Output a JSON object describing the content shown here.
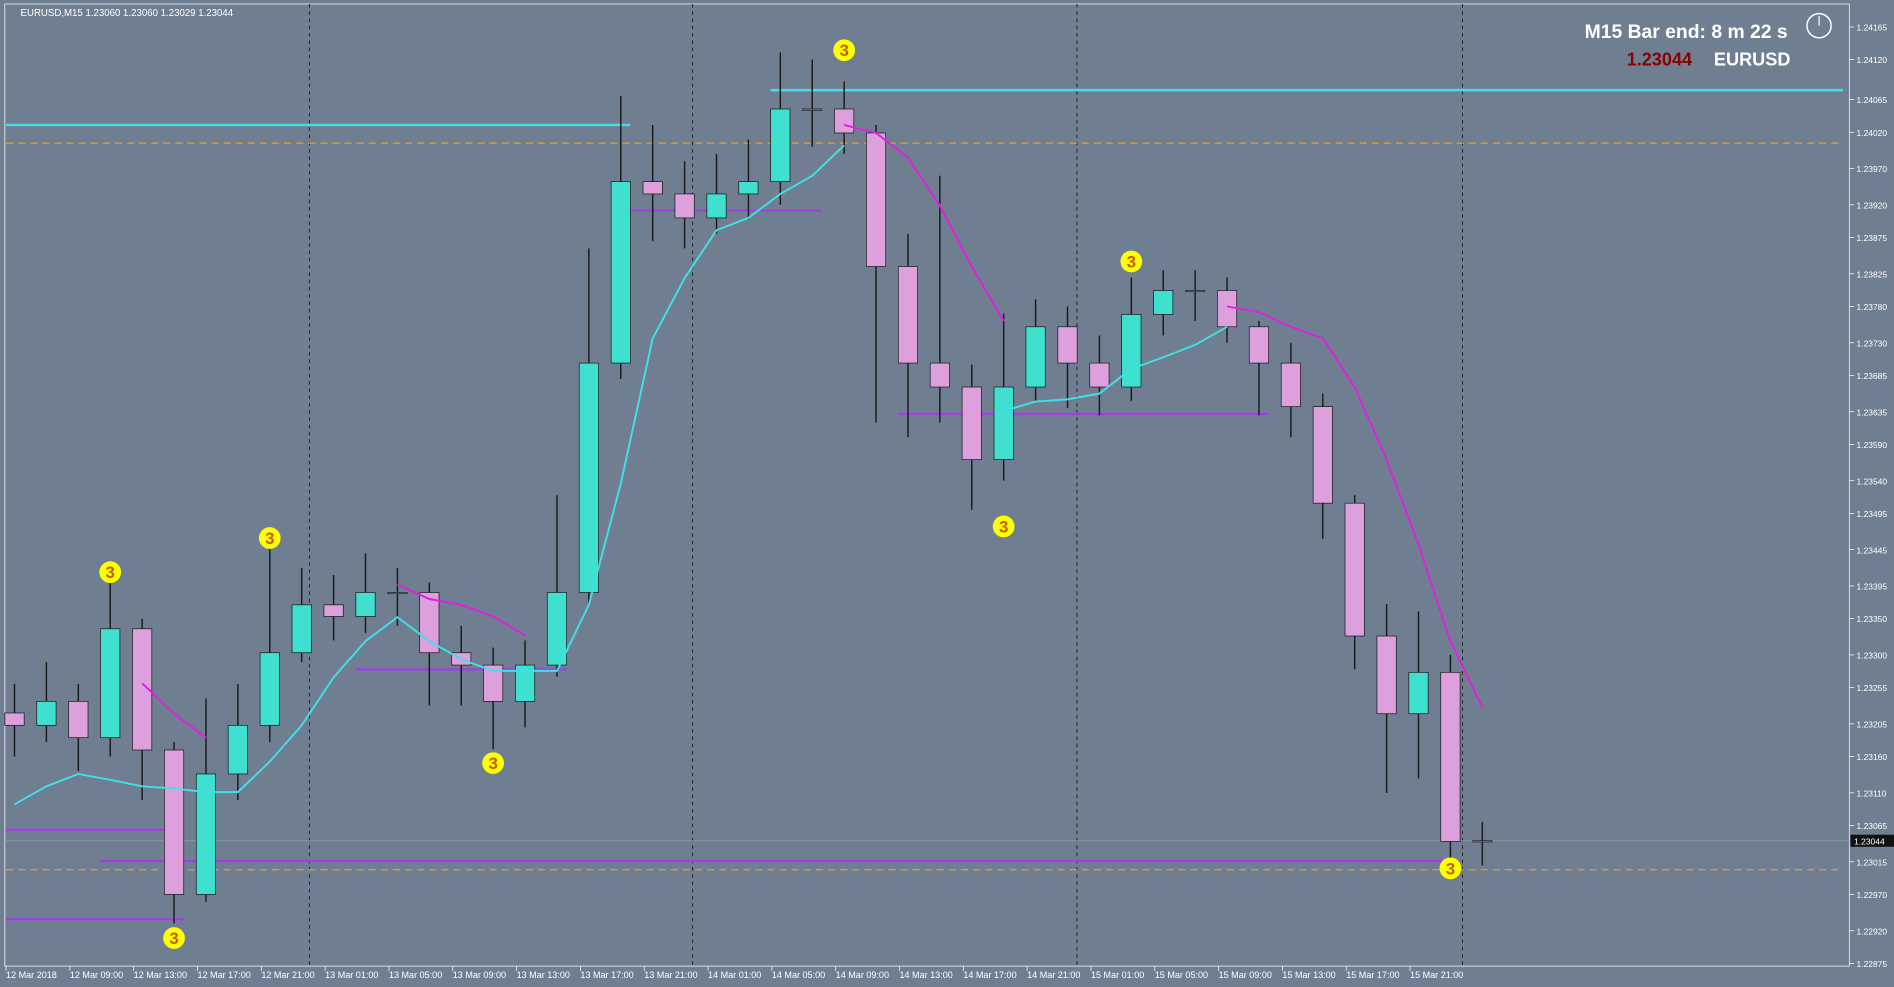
{
  "chart_data": {
    "type": "candlestick",
    "title": "EURUSD,M15  1.23060 1.23060 1.23029 1.23044",
    "timer": "M15 Bar end: 8 m 22 s",
    "symbol": "EURUSD",
    "last": {
      "value": 1.23044,
      "label": "1.23044"
    },
    "ylim": [
      1.22873,
      1.24195
    ],
    "yticks": [
      1.24165,
      {
        "value": 1.2412,
        "label": "1.24120"
      },
      1.24065,
      {
        "value": 1.2402,
        "label": "1.24020"
      },
      {
        "value": 1.2397,
        "label": "1.23970"
      },
      {
        "value": 1.2392,
        "label": "1.23920"
      },
      1.23875,
      1.23825,
      {
        "value": 1.2378,
        "label": "1.23780"
      },
      {
        "value": 1.2373,
        "label": "1.23730"
      },
      1.23685,
      1.23635,
      {
        "value": 1.2359,
        "label": "1.23590"
      },
      {
        "value": 1.2354,
        "label": "1.23540"
      },
      1.23495,
      1.23445,
      1.23395,
      {
        "value": 1.2335,
        "label": "1.23350"
      },
      {
        "value": 1.233,
        "label": "1.23300"
      },
      1.23255,
      1.23205,
      {
        "value": 1.2316,
        "label": "1.23160"
      },
      {
        "value": 1.2311,
        "label": "1.23110"
      },
      1.23065,
      1.23015,
      {
        "value": 1.2297,
        "label": "1.22970"
      },
      {
        "value": 1.2292,
        "label": "1.22920"
      },
      1.22875
    ],
    "categories": [
      "12 Mar 2018",
      "12 Mar 09:00",
      "12 Mar 13:00",
      "12 Mar 17:00",
      "12 Mar 21:00",
      "13 Mar 01:00",
      "13 Mar 05:00",
      "13 Mar 09:00",
      "13 Mar 13:00",
      "13 Mar 17:00",
      "13 Mar 21:00",
      "14 Mar 01:00",
      "14 Mar 05:00",
      "14 Mar 09:00",
      "14 Mar 13:00",
      "14 Mar 17:00",
      "14 Mar 21:00",
      "15 Mar 01:00",
      "15 Mar 05:00",
      "15 Mar 09:00",
      "15 Mar 13:00",
      "15 Mar 17:00",
      "15 Mar 21:00"
    ],
    "ohlc": {
      "open": [
        1.2322,
        1.23203,
        1.23236,
        1.23186,
        1.23336,
        1.23169,
        1.2297,
        1.23136,
        1.23203,
        1.23303,
        1.23369,
        1.23353,
        1.23386,
        1.23386,
        1.23303,
        1.23286,
        1.23236,
        1.23286,
        1.23386,
        1.23702,
        1.23952,
        1.23935,
        1.23902,
        1.23935,
        1.23952,
        1.24052,
        1.24052,
        1.24019,
        1.23835,
        1.23702,
        1.23669,
        1.23569,
        1.23669,
        1.23752,
        1.23702,
        1.23669,
        1.23769,
        1.23802,
        1.23802,
        1.23752,
        1.23702,
        1.23642,
        1.23509,
        1.23326,
        1.23219,
        1.23276,
        1.23043
      ],
      "high": [
        1.2326,
        1.2329,
        1.2326,
        1.234,
        1.2335,
        1.2318,
        1.2324,
        1.2326,
        1.2345,
        1.2342,
        1.2341,
        1.2344,
        1.2342,
        1.234,
        1.2334,
        1.2331,
        1.2332,
        1.2352,
        1.2386,
        1.2407,
        1.2403,
        1.2398,
        1.2399,
        1.2401,
        1.2413,
        1.2412,
        1.2409,
        1.2403,
        1.2388,
        1.2396,
        1.237,
        1.2377,
        1.2379,
        1.2378,
        1.2374,
        1.2382,
        1.2383,
        1.2383,
        1.2382,
        1.2376,
        1.2373,
        1.2366,
        1.2352,
        1.2337,
        1.2336,
        1.233,
        1.2307
      ],
      "low": [
        1.2316,
        1.2318,
        1.2314,
        1.2316,
        1.231,
        1.2293,
        1.2296,
        1.231,
        1.2318,
        1.2329,
        1.2332,
        1.2333,
        1.2334,
        1.2323,
        1.2323,
        1.2317,
        1.232,
        1.2327,
        1.2337,
        1.2368,
        1.2387,
        1.2386,
        1.2388,
        1.239,
        1.2392,
        1.24,
        1.2399,
        1.2362,
        1.236,
        1.2362,
        1.235,
        1.2354,
        1.2365,
        1.2364,
        1.2363,
        1.2365,
        1.2374,
        1.2376,
        1.2373,
        1.2363,
        1.236,
        1.2346,
        1.2328,
        1.2311,
        1.2313,
        1.2301,
        1.2301
      ],
      "close": [
        1.23203,
        1.23236,
        1.23186,
        1.23336,
        1.23169,
        1.2297,
        1.23136,
        1.23203,
        1.23303,
        1.23369,
        1.23353,
        1.23386,
        1.23386,
        1.23303,
        1.23286,
        1.23236,
        1.23286,
        1.23386,
        1.23702,
        1.23952,
        1.23935,
        1.23902,
        1.23935,
        1.23952,
        1.24052,
        1.24052,
        1.24019,
        1.23835,
        1.23702,
        1.23669,
        1.23569,
        1.23669,
        1.23752,
        1.23702,
        1.23669,
        1.23769,
        1.23802,
        1.23802,
        1.23752,
        1.23702,
        1.23642,
        1.23509,
        1.23326,
        1.23219,
        1.23276,
        1.23043,
        1.23044
      ]
    },
    "up_color": "#40e0d0",
    "down_color": "#dda0dd",
    "overlays": [
      {
        "color": "#40e0e8",
        "values": [
          1.23094,
          1.23119,
          1.23136,
          1.23128,
          1.23119,
          1.23116,
          1.23111,
          1.23111,
          1.23153,
          1.23203,
          1.23269,
          1.23319,
          1.23352,
          1.23319,
          1.23294,
          1.23278,
          1.23278,
          1.23278,
          1.23369,
          1.23536,
          1.23736,
          1.23819,
          1.23885,
          1.23902,
          1.23935,
          1.2396,
          1.24002,
          null,
          null,
          null,
          null,
          1.23636,
          1.23649,
          1.23652,
          1.2366,
          1.23694,
          1.2371,
          1.23727,
          1.23752,
          null,
          null,
          null,
          null,
          null,
          null,
          null,
          null
        ]
      },
      {
        "color": "#e020e0",
        "values": [
          null,
          null,
          null,
          null,
          1.23261,
          1.23219,
          1.23186,
          null,
          null,
          null,
          null,
          null,
          1.23397,
          1.23377,
          1.23369,
          1.23353,
          1.23327,
          null,
          null,
          null,
          null,
          null,
          null,
          null,
          null,
          null,
          1.2403,
          1.24019,
          1.23985,
          1.23919,
          1.23835,
          1.2376,
          null,
          null,
          null,
          null,
          null,
          null,
          1.2378,
          1.23772,
          1.23752,
          1.23736,
          1.23669,
          1.23569,
          1.23452,
          1.23319,
          1.23228
        ]
      }
    ],
    "levels": [
      {
        "price": 1.24078,
        "color": "#40e0e8",
        "from": 24,
        "to": 57
      },
      {
        "price": 1.2403,
        "color": "#40e0e8",
        "from": 0,
        "to": 19
      },
      {
        "price": 1.24005,
        "color": "#e8a020",
        "dashed": true,
        "from": 0,
        "to": 57
      },
      {
        "price": 1.23004,
        "color": "#e8a020",
        "dashed": true,
        "from": 0,
        "to": 57
      },
      {
        "price": 1.23016,
        "color": "#a040e0",
        "from": 3,
        "to": 45
      },
      {
        "price": 1.23059,
        "color": "#a040e0",
        "from": 0,
        "to": 5
      },
      {
        "price": 1.22936,
        "color": "#a040e0",
        "from": 0,
        "to": 5
      },
      {
        "price": 1.23632,
        "color": "#a040e0",
        "from": 28,
        "to": 39
      },
      {
        "price": 1.2328,
        "color": "#a040e0",
        "from": 11,
        "to": 17
      },
      {
        "price": 1.23912,
        "color": "#a040e0",
        "from": 19,
        "to": 25
      }
    ],
    "signals": [
      {
        "label": "3",
        "bar": 3,
        "price": 1.23414
      },
      {
        "label": "3",
        "bar": 8,
        "price": 1.23461
      },
      {
        "label": "3",
        "bar": 5,
        "price": 1.2291
      },
      {
        "label": "3",
        "bar": 15,
        "price": 1.23151
      },
      {
        "label": "3",
        "bar": 26,
        "price": 1.24133
      },
      {
        "label": "3",
        "bar": 31,
        "price": 1.23477
      },
      {
        "label": "3",
        "bar": 35,
        "price": 1.23842
      },
      {
        "label": "3",
        "bar": 45,
        "price": 1.23006
      }
    ]
  }
}
